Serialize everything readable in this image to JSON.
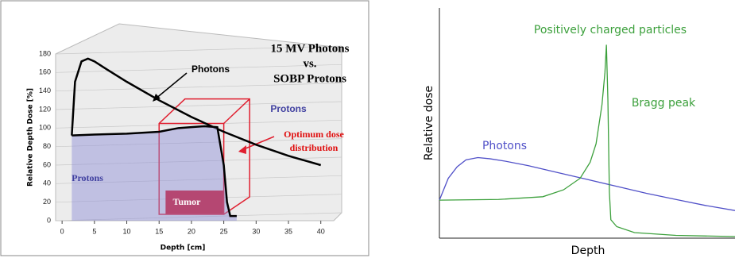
{
  "chart_data": [
    {
      "type": "line",
      "title": [
        "15 MV Photons",
        "vs.",
        "SOBP Protons"
      ],
      "xlabel": "Depth [cm]",
      "ylabel": "Relative Depth Dose [%]",
      "xlim": [
        -1,
        42
      ],
      "ylim": [
        0,
        180
      ],
      "xticks": [
        0,
        5,
        10,
        15,
        20,
        25,
        30,
        35,
        40
      ],
      "yticks": [
        0,
        20,
        40,
        60,
        80,
        100,
        120,
        140,
        160,
        180
      ],
      "grid": true,
      "series": [
        {
          "name": "Photons",
          "color": "#000000",
          "x": [
            1.5,
            2,
            3,
            4,
            5,
            7,
            10,
            15,
            20,
            25,
            30,
            35,
            40
          ],
          "values": [
            92,
            150,
            172,
            175,
            172,
            163,
            150,
            130,
            112,
            96,
            82,
            70,
            60
          ]
        },
        {
          "name": "Protons",
          "color": "#000000",
          "area_color": "#8c8cd8",
          "x": [
            1.5,
            5,
            10,
            15,
            18,
            20,
            22,
            24,
            25,
            25.5,
            26,
            27
          ],
          "values": [
            92,
            93,
            94,
            96,
            100,
            101,
            102,
            101,
            60,
            20,
            5,
            5
          ]
        }
      ],
      "annotations": [
        {
          "text": "Protons",
          "color": "#4040a0"
        },
        {
          "text": "Optimum dose",
          "color": "#e01010"
        },
        {
          "text": "distribution",
          "color": "#e01010"
        },
        {
          "text": "Tumor",
          "color": "#ffffff"
        }
      ]
    },
    {
      "type": "line",
      "xlabel": "Depth",
      "ylabel": "Relative dose",
      "xlim": [
        0,
        100
      ],
      "ylim": [
        0,
        100
      ],
      "series": [
        {
          "name": "Photons",
          "color": "#5050c8",
          "x": [
            0,
            3,
            6,
            9,
            13,
            17,
            22,
            30,
            40,
            50,
            60,
            70,
            80,
            90,
            100
          ],
          "values": [
            16.5,
            26,
            31,
            34,
            35,
            34.5,
            33.5,
            31.5,
            28.5,
            25.5,
            22.5,
            19.5,
            16.8,
            14.2,
            12
          ]
        },
        {
          "name": "Positively charged particles",
          "color": "#3ca03c",
          "x": [
            0,
            20,
            35,
            42,
            47.6,
            51,
            53,
            55,
            56,
            56.5,
            57,
            57.5,
            58,
            60,
            66,
            80,
            100
          ],
          "values": [
            16.5,
            16.8,
            18,
            21,
            26,
            33,
            41,
            58,
            72,
            84,
            60,
            20,
            8,
            5,
            2.4,
            1.2,
            0.7
          ]
        }
      ],
      "annotations": [
        {
          "text": "Bragg peak",
          "color": "#3ca03c"
        }
      ]
    }
  ]
}
